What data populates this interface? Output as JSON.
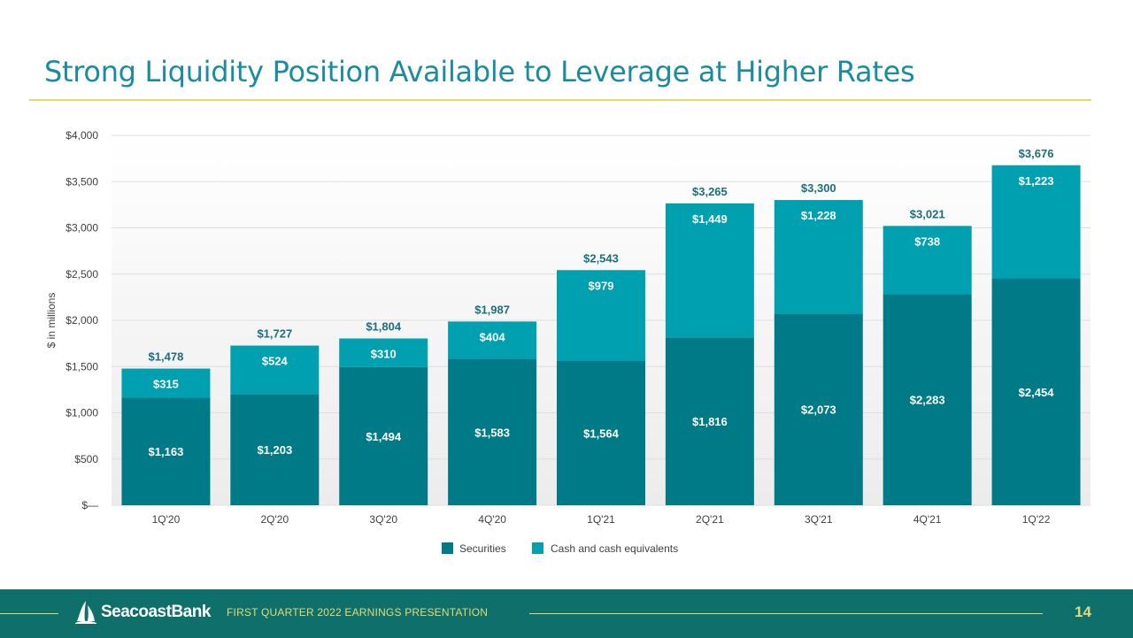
{
  "header": {
    "title": "Strong Liquidity Position Available to Leverage at Higher Rates"
  },
  "chart_data": {
    "type": "bar",
    "stacked": true,
    "categories": [
      "1Q'20",
      "2Q'20",
      "3Q'20",
      "4Q'20",
      "1Q'21",
      "2Q'21",
      "3Q'21",
      "4Q'21",
      "1Q'22"
    ],
    "series": [
      {
        "name": "Securities",
        "color": "#007a87",
        "values": [
          1163,
          1203,
          1494,
          1583,
          1564,
          1816,
          2073,
          2283,
          2454
        ],
        "labels": [
          "$1,163",
          "$1,203",
          "$1,494",
          "$1,583",
          "$1,564",
          "$1,816",
          "$2,073",
          "$2,283",
          "$2,454"
        ]
      },
      {
        "name": "Cash and cash equivalents",
        "color": "#00a0b0",
        "values": [
          315,
          524,
          310,
          404,
          979,
          1449,
          1228,
          738,
          1223
        ],
        "labels": [
          "$315",
          "$524",
          "$310",
          "$404",
          "$979",
          "$1,449",
          "$1,228",
          "$738",
          "$1,223"
        ]
      }
    ],
    "totals": [
      1478,
      1727,
      1804,
      1987,
      2543,
      3265,
      3300,
      3021,
      3676
    ],
    "total_labels": [
      "$1,478",
      "$1,727",
      "$1,804",
      "$1,987",
      "$2,543",
      "$3,265",
      "$3,300",
      "$3,021",
      "$3,676"
    ],
    "ylabel": "$ in millions",
    "ylim": [
      0,
      4000
    ],
    "yticks": [
      0,
      500,
      1000,
      1500,
      2000,
      2500,
      3000,
      3500,
      4000
    ],
    "ytick_labels": [
      "$—",
      "$500",
      "$1,000",
      "$1,500",
      "$2,000",
      "$2,500",
      "$3,000",
      "$3,500",
      "$4,000"
    ],
    "grid": true,
    "legend_position": "bottom-center"
  },
  "footer": {
    "logo_text": "SeacoastBank",
    "caption": "FIRST QUARTER 2022 EARNINGS PRESENTATION",
    "page_number": "14"
  }
}
